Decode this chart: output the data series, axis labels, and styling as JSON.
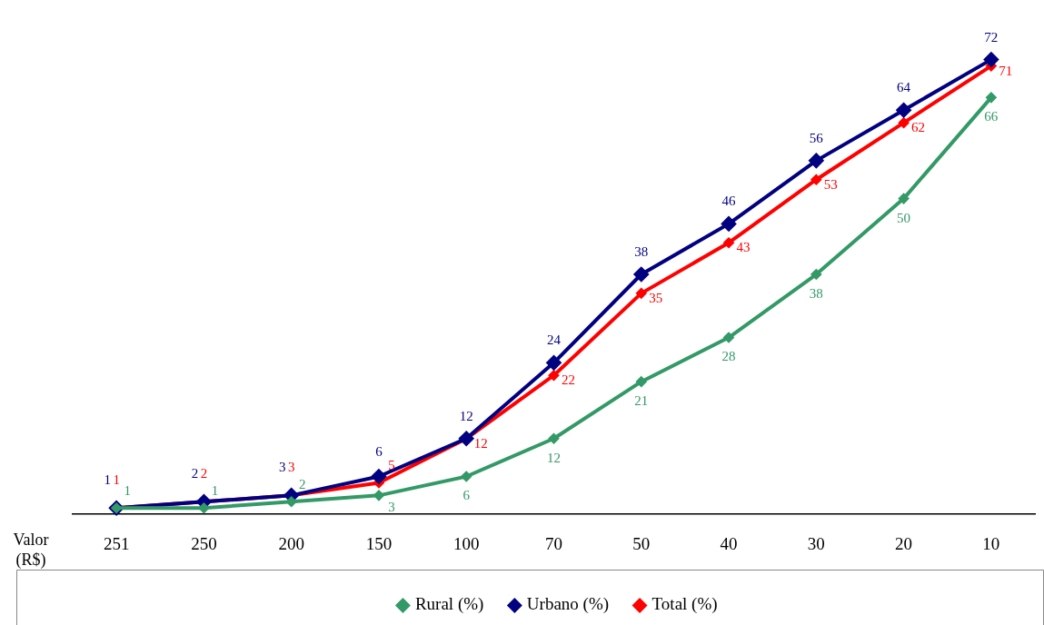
{
  "chart_data": {
    "type": "line",
    "xlabel": "Valor (R$)",
    "categories": [
      "251",
      "250",
      "200",
      "150",
      "100",
      "70",
      "50",
      "40",
      "30",
      "20",
      "10"
    ],
    "series": [
      {
        "name": "Rural (%)",
        "color": "#339966",
        "values": [
          1,
          1,
          2,
          3,
          6,
          12,
          21,
          28,
          38,
          50,
          66
        ]
      },
      {
        "name": "Urbano (%)",
        "color": "#000080",
        "values": [
          1,
          2,
          3,
          6,
          12,
          24,
          38,
          46,
          56,
          64,
          72
        ]
      },
      {
        "name": "Total (%)",
        "color": "#ff0000",
        "values": [
          1,
          2,
          3,
          5,
          12,
          22,
          35,
          43,
          53,
          62,
          71
        ]
      }
    ],
    "data_labels": true,
    "legend": "bottom",
    "marker": "diamond",
    "line_style": "solid",
    "grid": false
  }
}
